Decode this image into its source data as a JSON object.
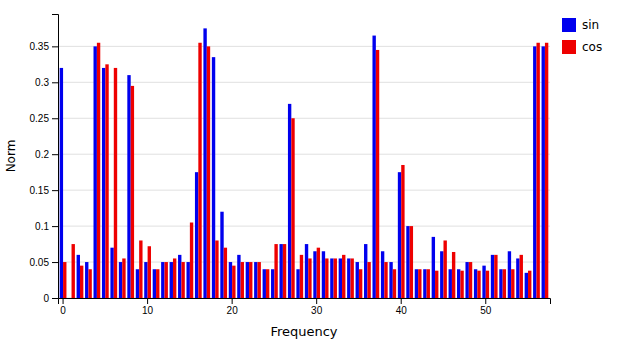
{
  "chart_data": {
    "type": "bar",
    "xlabel": "Frequency",
    "ylabel": "Norm",
    "categories": [
      "0",
      null,
      null,
      null,
      null,
      null,
      null,
      null,
      null,
      null,
      "10",
      null,
      null,
      null,
      null,
      null,
      null,
      null,
      null,
      null,
      "20",
      null,
      null,
      null,
      null,
      null,
      null,
      null,
      null,
      null,
      "30",
      null,
      null,
      null,
      null,
      null,
      null,
      null,
      null,
      null,
      "40",
      null,
      null,
      null,
      null,
      null,
      null,
      null,
      null,
      null,
      "50",
      null,
      null,
      null,
      null,
      null,
      null,
      null
    ],
    "series": [
      {
        "name": "sin",
        "color": "#0000ee",
        "values": [
          0.32,
          0.0,
          0.06,
          0.05,
          0.35,
          0.32,
          0.07,
          0.05,
          0.31,
          0.04,
          0.05,
          0.04,
          0.05,
          0.05,
          0.06,
          0.05,
          0.175,
          0.375,
          0.335,
          0.12,
          0.05,
          0.06,
          0.05,
          0.05,
          0.04,
          0.04,
          0.075,
          0.27,
          0.04,
          0.075,
          0.065,
          0.065,
          0.055,
          0.055,
          0.055,
          0.05,
          0.075,
          0.365,
          0.065,
          0.05,
          0.175,
          0.1,
          0.04,
          0.04,
          0.085,
          0.065,
          0.04,
          0.04,
          0.05,
          0.04,
          0.045,
          0.06,
          0.04,
          0.065,
          0.055,
          0.035,
          0.35,
          0.35
        ]
      },
      {
        "name": "cos",
        "color": "#ee0000",
        "values": [
          0.05,
          0.075,
          0.045,
          0.04,
          0.355,
          0.325,
          0.32,
          0.055,
          0.295,
          0.08,
          0.072,
          0.04,
          0.05,
          0.055,
          0.05,
          0.105,
          0.355,
          0.35,
          0.08,
          0.07,
          0.045,
          0.05,
          0.05,
          0.05,
          0.04,
          0.075,
          0.075,
          0.25,
          0.06,
          0.055,
          0.07,
          0.055,
          0.055,
          0.06,
          0.055,
          0.04,
          0.05,
          0.345,
          0.05,
          0.04,
          0.185,
          0.1,
          0.04,
          0.04,
          0.038,
          0.08,
          0.064,
          0.038,
          0.05,
          0.038,
          0.038,
          0.06,
          0.04,
          0.04,
          0.06,
          0.038,
          0.355,
          0.355
        ]
      }
    ],
    "ylim": [
      0,
      0.395
    ],
    "yticks": [
      0,
      0.05,
      0.1,
      0.15,
      0.2,
      0.25,
      0.3,
      0.35
    ],
    "grid": true,
    "legend": "right"
  }
}
